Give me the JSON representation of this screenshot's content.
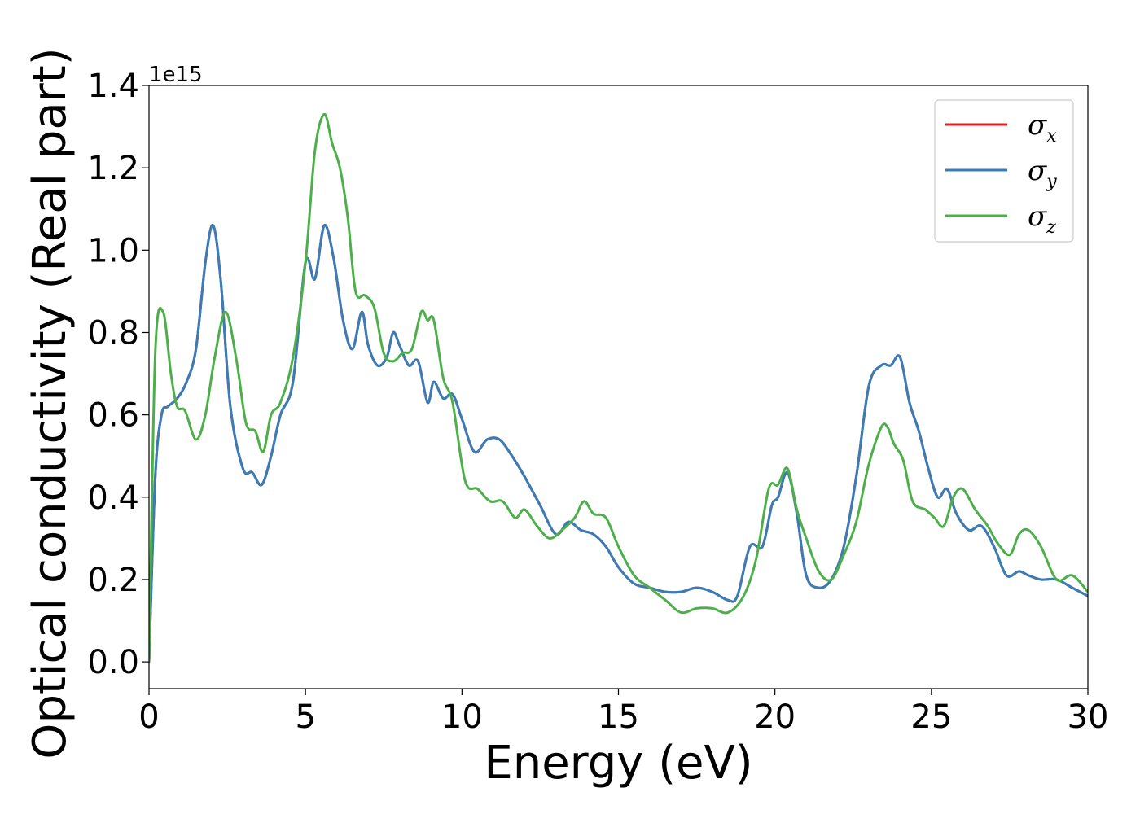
{
  "chart_data": {
    "type": "line",
    "title": "",
    "xlabel": "Energy (eV)",
    "ylabel": "Optical conductivity (Real part)",
    "y_offset_label": "1e15",
    "xlim": [
      0,
      30
    ],
    "ylim": [
      -0.065,
      1.4
    ],
    "xticks": [
      0,
      5,
      10,
      15,
      20,
      25,
      30
    ],
    "xtick_labels": [
      "0",
      "5",
      "10",
      "15",
      "20",
      "25",
      "30"
    ],
    "yticks": [
      0.0,
      0.2,
      0.4,
      0.6,
      0.8,
      1.0,
      1.2,
      1.4
    ],
    "ytick_labels": [
      "0.0",
      "0.2",
      "0.4",
      "0.6",
      "0.8",
      "1.0",
      "1.2",
      "1.4"
    ],
    "grid": false,
    "legend_position": "top-right",
    "colors": {
      "sigma_x": "#e41a1c",
      "sigma_y": "#377eb8",
      "sigma_z": "#4daf4a"
    },
    "series": [
      {
        "name": "σx",
        "legend_symbol": "σ",
        "legend_sub": "x",
        "color": "#e41a1c",
        "x": [
          0,
          0.2,
          0.4,
          0.6,
          0.9,
          1.2,
          1.5,
          1.8,
          2.05,
          2.3,
          2.6,
          3.0,
          3.3,
          3.6,
          3.9,
          4.2,
          4.6,
          5.0,
          5.3,
          5.6,
          5.9,
          6.2,
          6.5,
          6.8,
          7.0,
          7.3,
          7.6,
          7.8,
          8.0,
          8.3,
          8.6,
          8.9,
          9.1,
          9.4,
          9.7,
          10.0,
          10.4,
          10.8,
          11.2,
          11.6,
          12.0,
          12.5,
          13.0,
          13.4,
          13.8,
          14.2,
          14.6,
          15.0,
          15.5,
          16.0,
          16.5,
          17.0,
          17.5,
          18.0,
          18.5,
          18.8,
          19.2,
          19.6,
          19.9,
          20.1,
          20.4,
          20.7,
          21.0,
          21.4,
          21.8,
          22.2,
          22.6,
          23.0,
          23.4,
          23.7,
          24.0,
          24.3,
          24.6,
          24.9,
          25.2,
          25.5,
          25.8,
          26.2,
          26.6,
          27.0,
          27.4,
          27.8,
          28.1,
          28.5,
          29.0,
          29.5,
          30.0
        ],
        "y": [
          0,
          0.45,
          0.6,
          0.62,
          0.64,
          0.68,
          0.76,
          0.97,
          1.06,
          0.92,
          0.62,
          0.47,
          0.46,
          0.43,
          0.5,
          0.6,
          0.68,
          0.97,
          0.93,
          1.06,
          0.98,
          0.83,
          0.76,
          0.85,
          0.77,
          0.72,
          0.74,
          0.8,
          0.77,
          0.72,
          0.73,
          0.63,
          0.68,
          0.64,
          0.65,
          0.59,
          0.51,
          0.54,
          0.54,
          0.5,
          0.45,
          0.38,
          0.31,
          0.34,
          0.32,
          0.31,
          0.28,
          0.23,
          0.19,
          0.18,
          0.17,
          0.17,
          0.18,
          0.17,
          0.15,
          0.16,
          0.28,
          0.28,
          0.38,
          0.4,
          0.46,
          0.36,
          0.21,
          0.18,
          0.2,
          0.28,
          0.45,
          0.67,
          0.72,
          0.72,
          0.74,
          0.63,
          0.56,
          0.47,
          0.4,
          0.42,
          0.36,
          0.32,
          0.33,
          0.28,
          0.21,
          0.22,
          0.21,
          0.2,
          0.2,
          0.18,
          0.16
        ]
      },
      {
        "name": "σy",
        "legend_symbol": "σ",
        "legend_sub": "y",
        "color": "#377eb8",
        "x": [
          0,
          0.2,
          0.4,
          0.6,
          0.9,
          1.2,
          1.5,
          1.8,
          2.05,
          2.3,
          2.6,
          3.0,
          3.3,
          3.6,
          3.9,
          4.2,
          4.6,
          5.0,
          5.3,
          5.6,
          5.9,
          6.2,
          6.5,
          6.8,
          7.0,
          7.3,
          7.6,
          7.8,
          8.0,
          8.3,
          8.6,
          8.9,
          9.1,
          9.4,
          9.7,
          10.0,
          10.4,
          10.8,
          11.2,
          11.6,
          12.0,
          12.5,
          13.0,
          13.4,
          13.8,
          14.2,
          14.6,
          15.0,
          15.5,
          16.0,
          16.5,
          17.0,
          17.5,
          18.0,
          18.5,
          18.8,
          19.2,
          19.6,
          19.9,
          20.1,
          20.4,
          20.7,
          21.0,
          21.4,
          21.8,
          22.2,
          22.6,
          23.0,
          23.4,
          23.7,
          24.0,
          24.3,
          24.6,
          24.9,
          25.2,
          25.5,
          25.8,
          26.2,
          26.6,
          27.0,
          27.4,
          27.8,
          28.1,
          28.5,
          29.0,
          29.5,
          30.0
        ],
        "y": [
          0,
          0.45,
          0.6,
          0.62,
          0.64,
          0.68,
          0.76,
          0.97,
          1.06,
          0.92,
          0.62,
          0.47,
          0.46,
          0.43,
          0.5,
          0.6,
          0.68,
          0.97,
          0.93,
          1.06,
          0.98,
          0.83,
          0.76,
          0.85,
          0.77,
          0.72,
          0.74,
          0.8,
          0.77,
          0.72,
          0.73,
          0.63,
          0.68,
          0.64,
          0.65,
          0.59,
          0.51,
          0.54,
          0.54,
          0.5,
          0.45,
          0.38,
          0.31,
          0.34,
          0.32,
          0.31,
          0.28,
          0.23,
          0.19,
          0.18,
          0.17,
          0.17,
          0.18,
          0.17,
          0.15,
          0.16,
          0.28,
          0.28,
          0.38,
          0.4,
          0.46,
          0.36,
          0.21,
          0.18,
          0.2,
          0.28,
          0.45,
          0.67,
          0.72,
          0.72,
          0.74,
          0.63,
          0.56,
          0.47,
          0.4,
          0.42,
          0.36,
          0.32,
          0.33,
          0.28,
          0.21,
          0.22,
          0.21,
          0.2,
          0.2,
          0.18,
          0.16
        ]
      },
      {
        "name": "σz",
        "legend_symbol": "σ",
        "legend_sub": "z",
        "color": "#4daf4a",
        "x": [
          0,
          0.2,
          0.45,
          0.7,
          0.9,
          1.15,
          1.5,
          1.8,
          2.1,
          2.45,
          2.8,
          3.1,
          3.4,
          3.65,
          3.9,
          4.2,
          4.6,
          5.0,
          5.3,
          5.6,
          5.85,
          6.1,
          6.35,
          6.6,
          6.9,
          7.2,
          7.5,
          7.8,
          8.1,
          8.4,
          8.7,
          8.9,
          9.1,
          9.4,
          9.7,
          10.1,
          10.5,
          10.9,
          11.3,
          11.7,
          12.0,
          12.4,
          12.8,
          13.2,
          13.6,
          13.9,
          14.2,
          14.6,
          15.0,
          15.5,
          16.0,
          16.5,
          17.0,
          17.5,
          18.0,
          18.5,
          19.0,
          19.4,
          19.8,
          20.1,
          20.4,
          20.7,
          21.0,
          21.4,
          21.8,
          22.2,
          22.6,
          23.0,
          23.4,
          23.6,
          23.8,
          24.1,
          24.4,
          24.8,
          25.1,
          25.4,
          25.7,
          26.0,
          26.4,
          26.8,
          27.1,
          27.5,
          27.8,
          28.1,
          28.5,
          29.0,
          29.5,
          30.0
        ],
        "y": [
          0,
          0.75,
          0.85,
          0.7,
          0.62,
          0.61,
          0.54,
          0.6,
          0.74,
          0.85,
          0.73,
          0.58,
          0.56,
          0.51,
          0.6,
          0.63,
          0.74,
          0.97,
          1.24,
          1.33,
          1.26,
          1.2,
          1.08,
          0.9,
          0.89,
          0.86,
          0.75,
          0.73,
          0.75,
          0.76,
          0.85,
          0.83,
          0.83,
          0.69,
          0.63,
          0.44,
          0.42,
          0.39,
          0.39,
          0.35,
          0.37,
          0.33,
          0.3,
          0.32,
          0.35,
          0.39,
          0.36,
          0.35,
          0.28,
          0.21,
          0.18,
          0.15,
          0.12,
          0.13,
          0.13,
          0.12,
          0.16,
          0.25,
          0.42,
          0.43,
          0.47,
          0.37,
          0.3,
          0.22,
          0.2,
          0.26,
          0.34,
          0.48,
          0.57,
          0.57,
          0.53,
          0.49,
          0.39,
          0.37,
          0.35,
          0.33,
          0.4,
          0.42,
          0.37,
          0.33,
          0.29,
          0.26,
          0.31,
          0.32,
          0.28,
          0.2,
          0.21,
          0.17
        ]
      }
    ]
  }
}
